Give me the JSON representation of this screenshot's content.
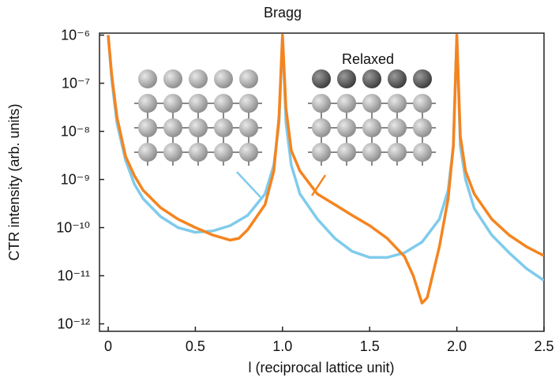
{
  "chart_data": {
    "type": "line",
    "annotations": [
      "Bragg",
      "Relaxed"
    ],
    "xlabel": "l (reciprocal lattice unit)",
    "ylabel": "CTR intensity (arb. units)",
    "xlim": [
      -0.05,
      2.5
    ],
    "xticks": [
      0,
      0.5,
      {
        "value": 1,
        "label": "1.0"
      },
      1.5,
      {
        "value": 2,
        "label": "2.0"
      },
      2.5
    ],
    "ylim": [
      7e-13,
      1.1e-06
    ],
    "log_y": true,
    "yticks": [
      {
        "value": 1e-06,
        "label": "10⁻⁶"
      },
      {
        "value": 1e-07,
        "label": "10⁻⁷"
      },
      {
        "value": 1e-08,
        "label": "10⁻⁸"
      },
      {
        "value": 1e-09,
        "label": "10⁻⁹"
      },
      {
        "value": 1e-10,
        "label": "10⁻¹⁰"
      },
      {
        "value": 1e-11,
        "label": "10⁻¹¹"
      },
      {
        "value": 1e-12,
        "label": "10⁻¹²"
      }
    ],
    "series": [
      {
        "color": "#7fcbec",
        "x": [
          0,
          0.02,
          0.05,
          0.1,
          0.15,
          0.2,
          0.3,
          0.4,
          0.5,
          0.6,
          0.7,
          0.8,
          0.9,
          0.95,
          0.98,
          1.0,
          1.02,
          1.05,
          1.1,
          1.2,
          1.3,
          1.4,
          1.5,
          1.6,
          1.7,
          1.8,
          1.9,
          1.95,
          1.98,
          2.0,
          2.02,
          2.05,
          2.1,
          2.2,
          2.3,
          2.4,
          2.5
        ],
        "values": [
          1e-06,
          1.2e-07,
          1.5e-08,
          2.5e-09,
          8e-10,
          4e-10,
          1.7e-10,
          1e-10,
          8e-11,
          8.5e-11,
          1.1e-10,
          1.8e-10,
          5e-10,
          2e-09,
          1.5e-08,
          1e-06,
          1.5e-08,
          2e-09,
          5e-10,
          1.5e-10,
          6e-11,
          3.2e-11,
          2.4e-11,
          2.4e-11,
          3e-11,
          5e-11,
          1.5e-10,
          6e-10,
          5e-09,
          1e-06,
          5e-09,
          1e-09,
          2.5e-10,
          7e-11,
          3e-11,
          1.4e-11,
          8e-12
        ]
      },
      {
        "color": "#f5841f",
        "x": [
          0,
          0.02,
          0.05,
          0.1,
          0.15,
          0.2,
          0.3,
          0.4,
          0.5,
          0.6,
          0.7,
          0.75,
          0.8,
          0.9,
          0.95,
          0.98,
          1.0,
          1.02,
          1.05,
          1.1,
          1.2,
          1.3,
          1.4,
          1.5,
          1.6,
          1.7,
          1.75,
          1.8,
          1.83,
          1.9,
          1.95,
          1.98,
          2.0,
          2.02,
          2.05,
          2.1,
          2.2,
          2.3,
          2.4,
          2.5
        ],
        "values": [
          1e-06,
          1.5e-07,
          2e-08,
          3e-09,
          1.2e-09,
          6e-10,
          2.6e-10,
          1.5e-10,
          1e-10,
          7e-11,
          5.5e-11,
          6e-11,
          9e-11,
          3e-10,
          1.5e-09,
          2e-08,
          1e-06,
          3e-08,
          4e-09,
          1.5e-09,
          5e-10,
          3e-10,
          1.8e-10,
          1.1e-10,
          6e-11,
          2.5e-11,
          1e-11,
          2.7e-12,
          3.5e-12,
          4e-11,
          4e-10,
          5e-09,
          1e-06,
          8e-09,
          1.5e-09,
          5e-10,
          1.5e-10,
          7e-11,
          4e-11,
          2.6e-11
        ]
      }
    ]
  }
}
